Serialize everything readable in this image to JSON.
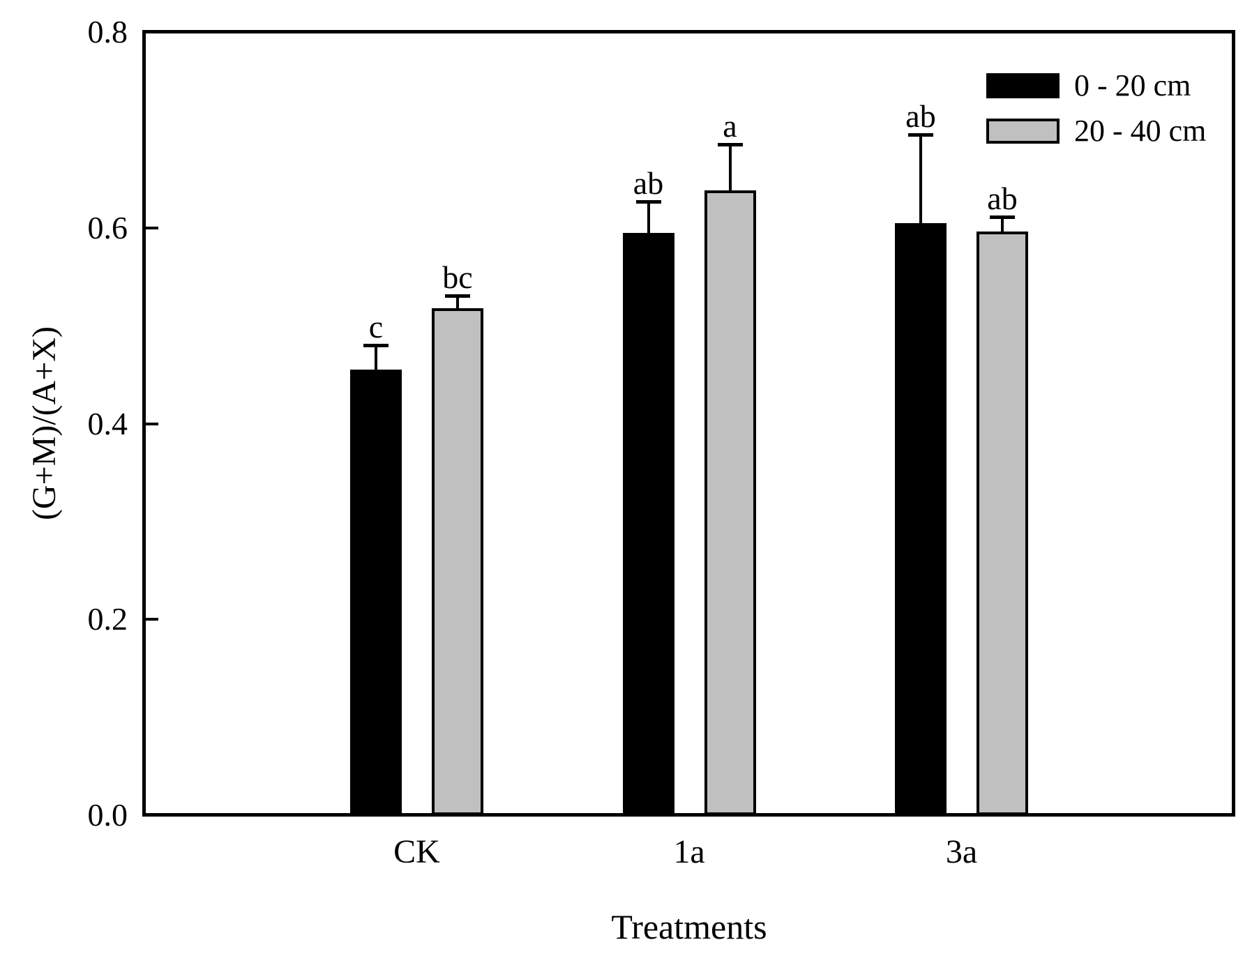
{
  "chart_data": {
    "type": "bar",
    "title": "",
    "xlabel": "Treatments",
    "ylabel": "(G+M)/(A+X)",
    "ylim": [
      0.0,
      0.8
    ],
    "yticks": [
      0.0,
      0.2,
      0.4,
      0.6,
      0.8
    ],
    "ytick_decimals": 1,
    "categories": [
      "CK",
      "1a",
      "3a"
    ],
    "series": [
      {
        "name": "0 - 20 cm",
        "color": "#000000",
        "values": [
          0.455,
          0.595,
          0.605
        ],
        "errors": [
          0.025,
          0.032,
          0.09
        ],
        "sig_letters": [
          "c",
          "ab",
          "ab"
        ]
      },
      {
        "name": "20 - 40 cm",
        "color": "#c0c0c0",
        "values": [
          0.518,
          0.638,
          0.596
        ],
        "errors": [
          0.013,
          0.047,
          0.015
        ],
        "sig_letters": [
          "bc",
          "a",
          "ab"
        ]
      }
    ],
    "error_bars": "upper-only",
    "grid": false,
    "legend_position": "top-right",
    "frame": true,
    "colors": {
      "axis": "#000000",
      "background": "#ffffff",
      "series_black": "#000000",
      "series_gray": "#c0c0c0"
    }
  }
}
